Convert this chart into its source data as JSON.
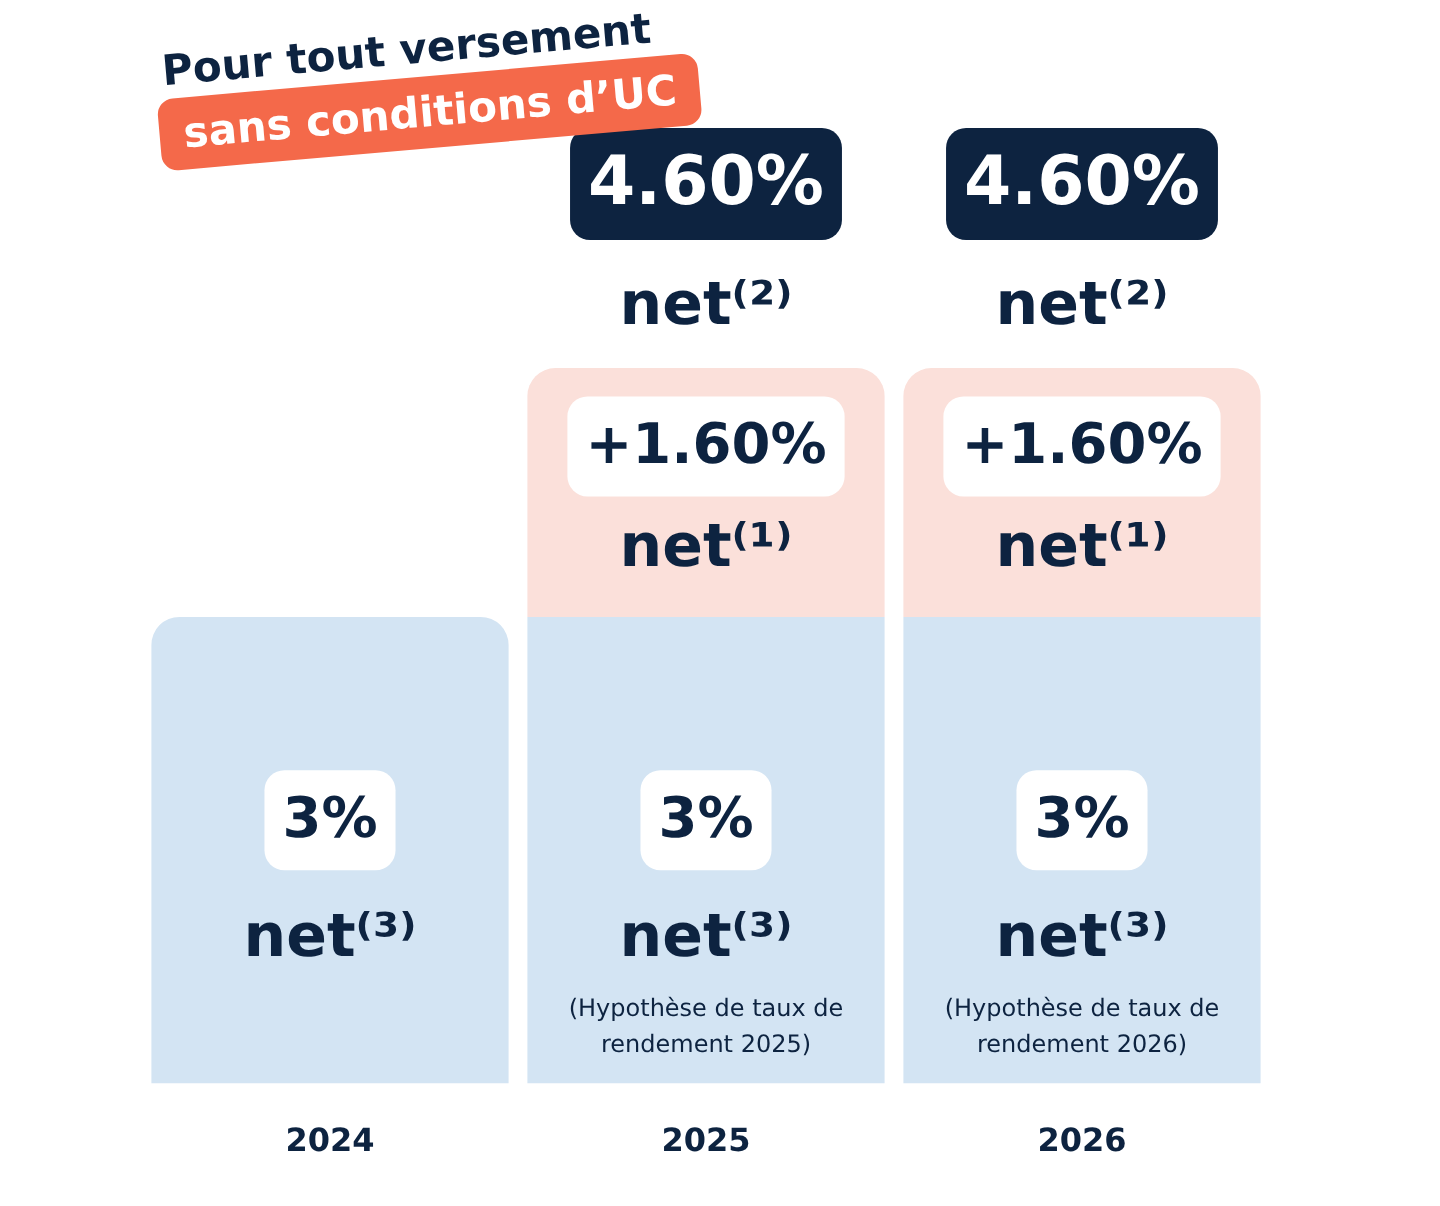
{
  "chart_data": {
    "type": "bar",
    "title": "Pour tout versement",
    "subtitle": "sans conditions d’UC",
    "categories": [
      "2024",
      "2025",
      "2026"
    ],
    "stacked": true,
    "series": [
      {
        "color": "#d3e4f3",
        "values": [
          3,
          3,
          3
        ],
        "value_labels": [
          "3% net⁽³⁾",
          "3% net⁽³⁾",
          "3% net⁽³⁾"
        ]
      },
      {
        "color": "#fbe0da",
        "values": [
          null,
          1.6,
          1.6
        ],
        "value_labels": [
          null,
          "+1.60% net⁽¹⁾",
          "+1.60% net⁽¹⁾"
        ]
      }
    ],
    "totals": [
      null,
      "4.60% net⁽²⁾",
      "4.60% net⁽²⁾"
    ],
    "annotations": [
      "(Hypothèse de taux de rendement 2025)",
      "(Hypothèse de taux de rendement 2026)"
    ],
    "grid": false,
    "legend": false
  }
}
